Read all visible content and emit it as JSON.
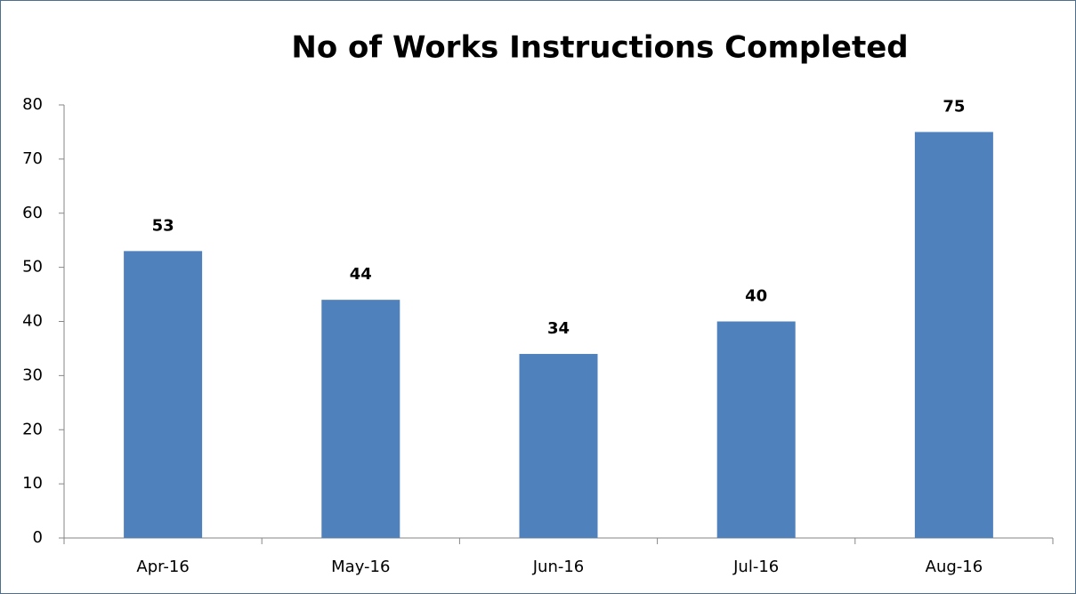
{
  "chart_data": {
    "type": "bar",
    "title": "No of Works Instructions Completed",
    "categories": [
      "Apr-16",
      "May-16",
      "Jun-16",
      "Jul-16",
      "Aug-16"
    ],
    "values": [
      53,
      44,
      34,
      40,
      75
    ],
    "color": "#4f81bd",
    "ylim": [
      0,
      80
    ],
    "yticks": [
      0,
      10,
      20,
      30,
      40,
      50,
      60,
      70,
      80
    ],
    "grid": false,
    "data_labels": true
  }
}
